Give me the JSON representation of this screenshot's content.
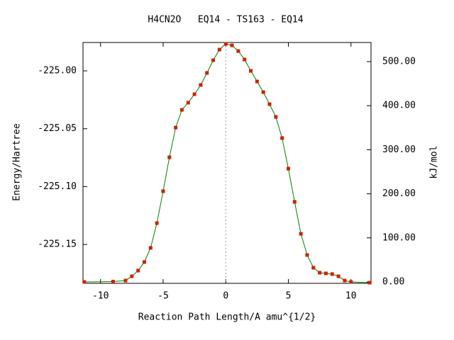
{
  "chart_data": {
    "type": "line",
    "title": "H4CN2O   EQ14 - TS163 - EQ14",
    "xlabel": "Reaction Path Length/A amu^{1/2}",
    "ylabel": "Energy/Hartree",
    "y2label": "kJ/mol",
    "x": [
      -11.3,
      -9,
      -8,
      -7.5,
      -7,
      -6.5,
      -6,
      -5.5,
      -5,
      -4.5,
      -4,
      -3.5,
      -3,
      -2.5,
      -2,
      -1.5,
      -1,
      -0.5,
      0,
      0.5,
      1,
      1.5,
      2,
      2.5,
      3,
      3.5,
      4,
      4.5,
      5,
      5.5,
      6,
      6.5,
      7,
      7.5,
      8,
      8.5,
      9,
      9.5,
      10,
      11.5
    ],
    "series": [
      {
        "color": "#008000",
        "marker_color": "#cc2200",
        "values": [
          -225.1824,
          -225.1821,
          -225.1812,
          -225.1775,
          -225.1726,
          -225.1652,
          -225.153,
          -225.1316,
          -225.104,
          -225.0747,
          -225.049,
          -225.0337,
          -225.0275,
          -225.0202,
          -225.0122,
          -225.0018,
          -224.9908,
          -224.9816,
          -224.9767,
          -224.978,
          -224.9829,
          -224.9902,
          -225.0,
          -225.0092,
          -225.0184,
          -225.0288,
          -225.0398,
          -225.0581,
          -225.0845,
          -225.1132,
          -225.1408,
          -225.1591,
          -225.1701,
          -225.1744,
          -225.175,
          -225.1756,
          -225.1775,
          -225.1812,
          -225.1824,
          -225.183
        ]
      }
    ],
    "vline": 0,
    "xlim": [
      -11.4,
      11.6
    ],
    "xticks": [
      -10,
      -5,
      0,
      5,
      10
    ],
    "ylim": [
      -225.1836,
      -224.9755
    ],
    "yticks": [
      {
        "value": -225.15,
        "label": "-225.15"
      },
      {
        "value": -225.1,
        "label": "-225.10"
      },
      {
        "value": -225.05,
        "label": "-225.05"
      },
      {
        "value": -225,
        "label": "-225.00"
      }
    ],
    "y2lim": [
      -3.2,
      543.4
    ],
    "y2ticks": [
      {
        "value": 0,
        "label": "0.00"
      },
      {
        "value": 100,
        "label": "100.00"
      },
      {
        "value": 200,
        "label": "200.00"
      },
      {
        "value": 300,
        "label": "300.00"
      },
      {
        "value": 400,
        "label": "400.00"
      },
      {
        "value": 500,
        "label": "500.00"
      }
    ]
  }
}
